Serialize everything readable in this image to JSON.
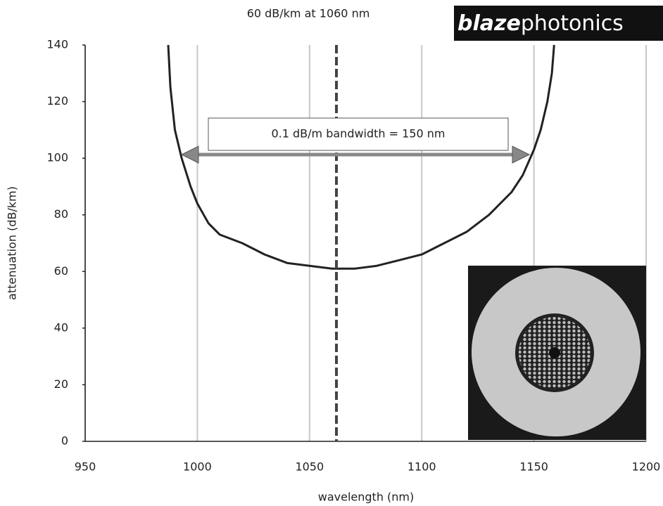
{
  "chart_data": {
    "type": "line",
    "xlabel": "wavelength (nm)",
    "ylabel": "attenuation (dB/km)",
    "annotations": [
      "60 dB/km at 1060 nm",
      "0.1 dB/m bandwidth = 150 nm"
    ],
    "x": [
      987,
      988,
      990,
      993,
      997,
      1000,
      1005,
      1010,
      1020,
      1030,
      1040,
      1050,
      1060,
      1070,
      1080,
      1090,
      1100,
      1110,
      1120,
      1130,
      1140,
      1145,
      1150,
      1153,
      1156,
      1158,
      1159
    ],
    "values": [
      140,
      125,
      110,
      100,
      90,
      84,
      77,
      73,
      70,
      66,
      63,
      62,
      61,
      61,
      62,
      64,
      66,
      70,
      74,
      80,
      88,
      94,
      103,
      110,
      120,
      130,
      140
    ],
    "color": "#222222",
    "xlim": [
      950,
      1200
    ],
    "xticks": [
      950,
      1000,
      1050,
      1100,
      1150,
      1200
    ],
    "ylim": [
      0,
      140
    ],
    "yticks": [
      0,
      20,
      40,
      60,
      80,
      100,
      120,
      140
    ],
    "grid": true
  },
  "logo": {
    "bold": "blaze",
    "light": "photonics"
  }
}
